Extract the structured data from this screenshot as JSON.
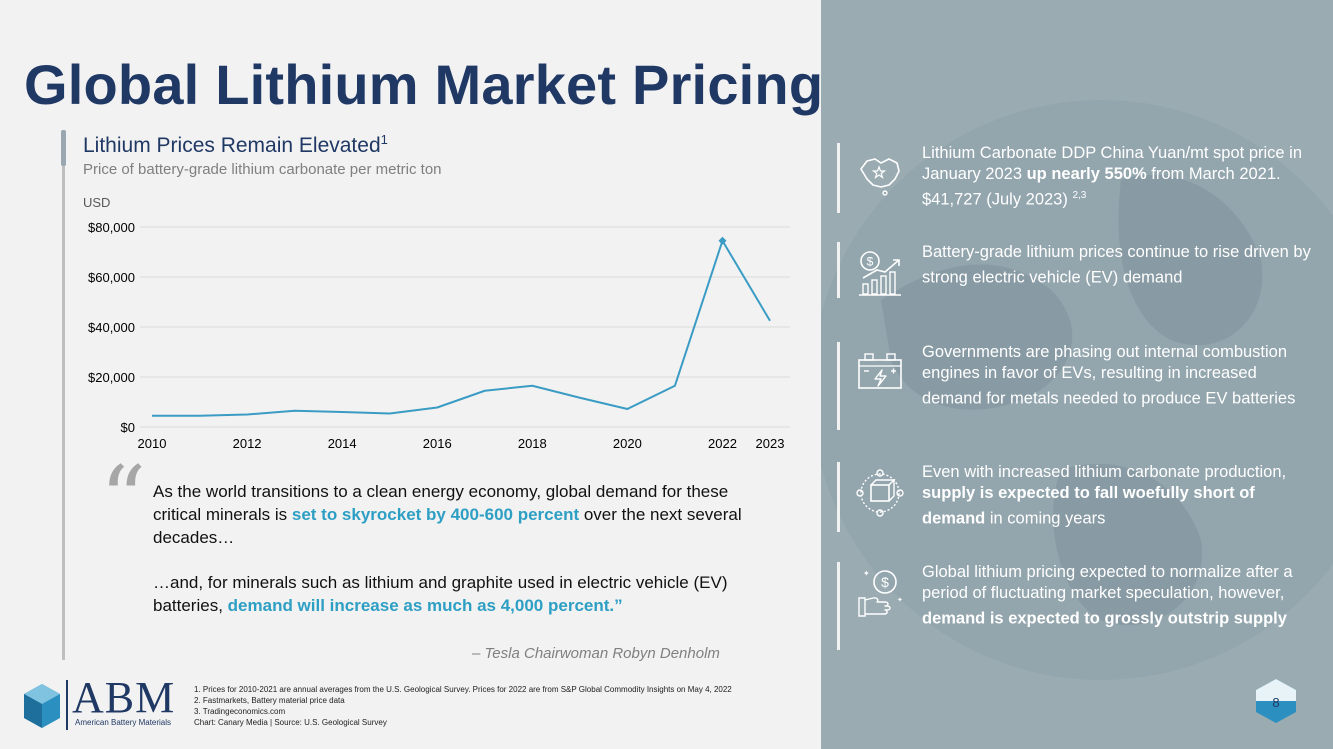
{
  "title": "Global Lithium Market Pricing",
  "chart_header": {
    "title": "Lithium Prices Remain Elevated",
    "title_sup": "1",
    "subtitle": "Price of battery-grade lithium carbonate per metric ton",
    "unit": "USD"
  },
  "chart_data": {
    "type": "line",
    "x": [
      2010,
      2011,
      2012,
      2013,
      2014,
      2015,
      2016,
      2017,
      2018,
      2019,
      2020,
      2021,
      2022,
      2023
    ],
    "series": [
      {
        "values": [
          4500,
          4500,
          5000,
          6500,
          6000,
          5400,
          7800,
          14500,
          16500,
          11700,
          7200,
          16500,
          74500,
          42500
        ]
      }
    ],
    "x_tick_labels": [
      "2010",
      "2012",
      "2014",
      "2016",
      "2018",
      "2020",
      "2022",
      "2023"
    ],
    "y_tick_labels": [
      "$0",
      "$20,000",
      "$40,000",
      "$60,000",
      "$80,000"
    ],
    "y_ticks": [
      0,
      20000,
      40000,
      60000,
      80000
    ],
    "ylim": [
      0,
      80000
    ],
    "marker_at": 2022,
    "grid": true,
    "color": "#3a9cc4"
  },
  "quote": {
    "p1_a": "As the world transitions to a clean energy economy, global demand for these critical minerals is ",
    "p1_highlight": "set to skyrocket by 400-600 percent",
    "p1_b": " over the next several decades…",
    "p2_a": "…and, for minerals such as lithium and graphite used in electric vehicle (EV) batteries, ",
    "p2_highlight": "demand will increase as much as 4,000 percent.”",
    "attribution": "– Tesla Chairwoman Robyn Denholm"
  },
  "logo": {
    "text": "ABM",
    "subtitle": "American Battery Materials"
  },
  "footnotes": [
    "1. Prices for 2010-2021 are annual averages from the U.S. Geological Survey. Prices for 2022 are from S&P Global Commodity Insights on May 4, 2022",
    "2. Fastmarkets, Battery material price data",
    "3. Tradingeconomics.com",
    "Chart: Canary Media | Source: U.S. Geological Survey"
  ],
  "bullets": [
    {
      "icon": "china-map-icon",
      "a": "Lithium Carbonate DDP China Yuan/mt spot price in January 2023 ",
      "b": "up nearly 550%",
      "c": " from March 2021. $41,727 (July 2023) ",
      "sup": "2,3"
    },
    {
      "icon": "rising-price-icon",
      "a": "Battery-grade lithium prices continue to rise driven by strong electric vehicle (EV) demand",
      "b": "",
      "c": "",
      "sup": ""
    },
    {
      "icon": "battery-icon",
      "a": "Governments are phasing out internal combustion engines in favor of EVs, resulting in increased demand for metals needed to produce EV batteries",
      "b": "",
      "c": "",
      "sup": ""
    },
    {
      "icon": "supply-network-icon",
      "a": "Even with increased lithium carbonate production, ",
      "b": "supply is expected to fall woefully short of demand",
      "c": " in coming years",
      "sup": ""
    },
    {
      "icon": "money-hand-icon",
      "a": "Global lithium pricing expected to normalize after a period of fluctuating market speculation, however, ",
      "b": "demand is expected to grossly outstrip supply",
      "c": "",
      "sup": ""
    }
  ],
  "page_number": "8"
}
